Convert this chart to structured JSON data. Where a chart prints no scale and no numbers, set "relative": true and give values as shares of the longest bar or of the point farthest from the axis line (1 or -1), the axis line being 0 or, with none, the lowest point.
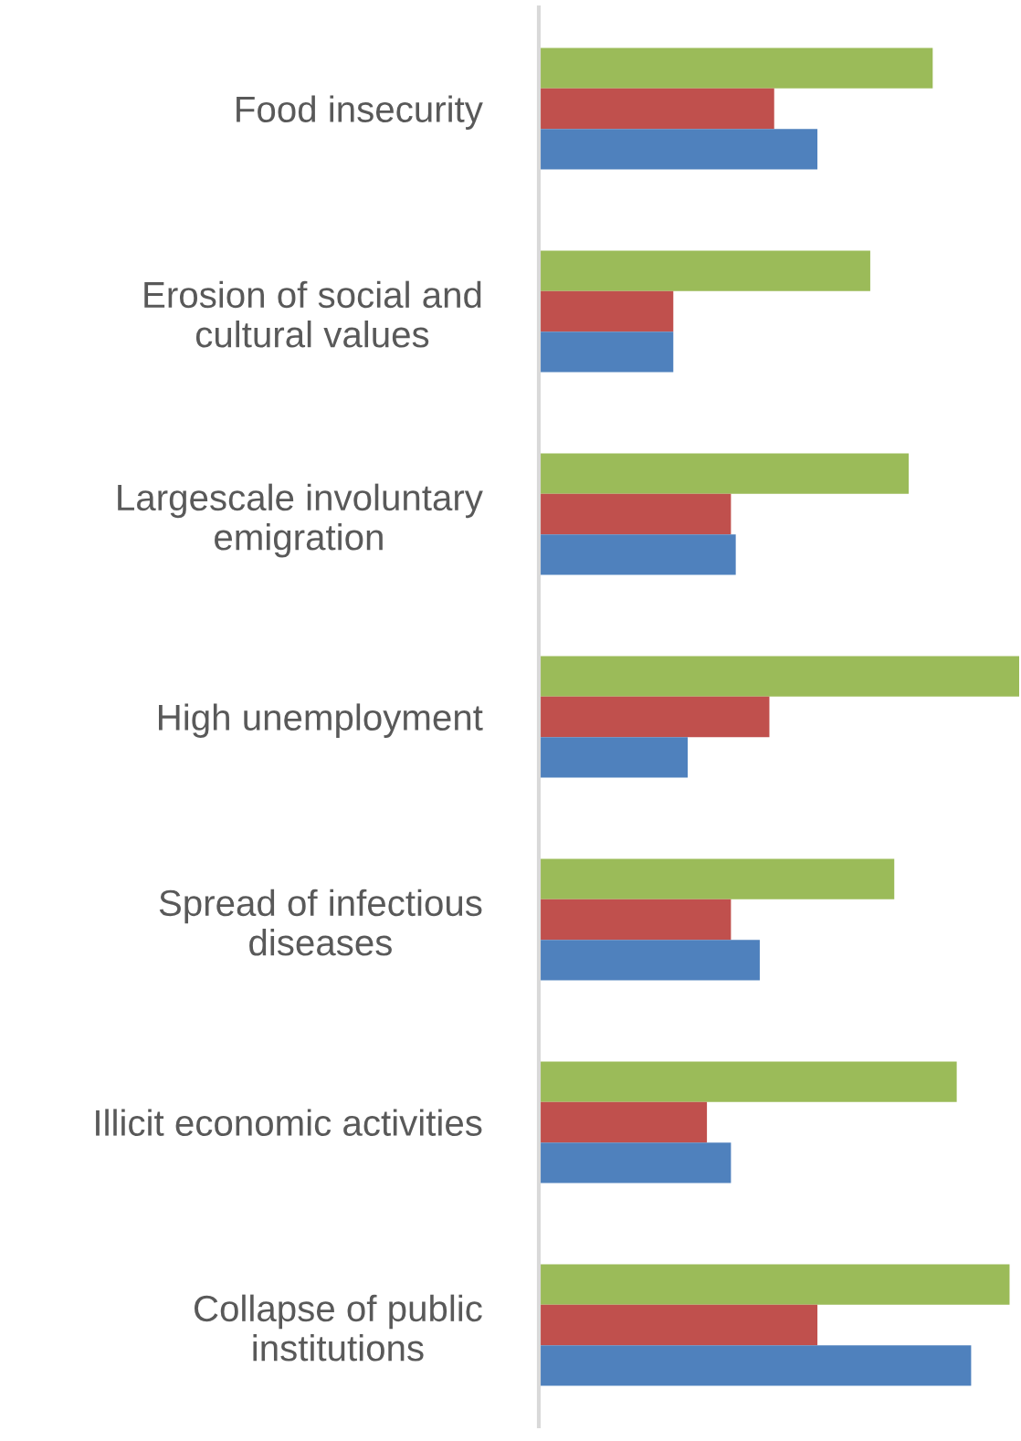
{
  "chart_data": {
    "type": "bar",
    "orientation": "horizontal",
    "relative": true,
    "legend": false,
    "grid": false,
    "categories": [
      "Food insecurity",
      "Erosion of social and\ncultural values",
      "Largescale involuntary\nemigration",
      "High unemployment",
      "Spread of infectious\ndiseases",
      "Illicit economic activities",
      "Collapse of public\ninstitutions"
    ],
    "series": [
      {
        "color": "#9bbb59",
        "values": [
          0.82,
          0.69,
          0.77,
          1.0,
          0.74,
          0.87,
          0.98
        ]
      },
      {
        "color": "#c0504d",
        "values": [
          0.49,
          0.28,
          0.4,
          0.48,
          0.4,
          0.35,
          0.58
        ]
      },
      {
        "color": "#4f81bd",
        "values": [
          0.58,
          0.28,
          0.41,
          0.31,
          0.46,
          0.4,
          0.9
        ]
      }
    ]
  }
}
